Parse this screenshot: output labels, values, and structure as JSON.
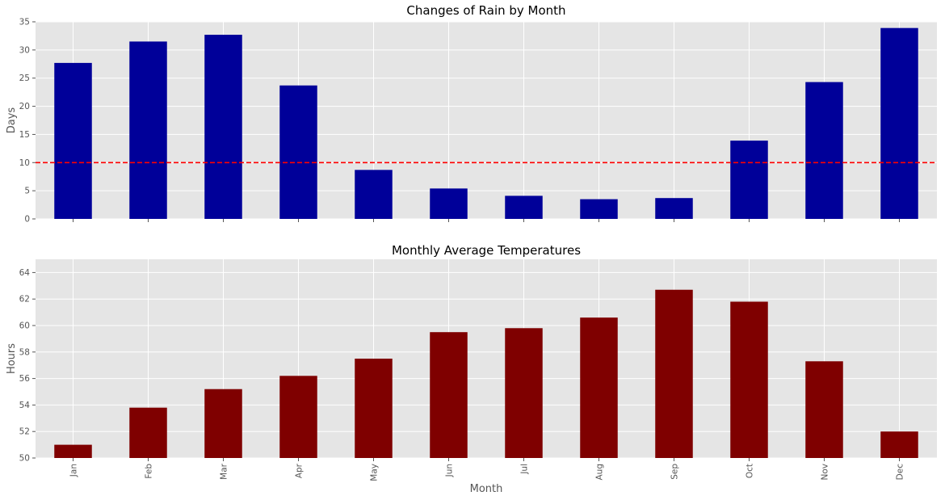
{
  "chart_data": [
    {
      "type": "bar",
      "title": "Changes of Rain by Month",
      "xlabel": "",
      "ylabel": "Days",
      "categories": [
        "Jan",
        "Feb",
        "Mar",
        "Apr",
        "May",
        "Jun",
        "Jul",
        "Aug",
        "Sep",
        "Oct",
        "Nov",
        "Dec"
      ],
      "values": [
        27.7,
        31.5,
        32.7,
        23.7,
        8.7,
        5.4,
        4.1,
        3.5,
        3.7,
        13.9,
        24.3,
        33.9
      ],
      "ylim": [
        0,
        35
      ],
      "yticks": [
        0,
        5,
        10,
        15,
        20,
        25,
        30,
        35
      ],
      "color": "#000099",
      "show_x_tick_labels": false,
      "reference_line": {
        "value": 10,
        "color": "#ff0000",
        "style": "dashed"
      },
      "grid": true
    },
    {
      "type": "bar",
      "title": "Monthly Average Temperatures",
      "xlabel": "Month",
      "ylabel": "Hours",
      "categories": [
        "Jan",
        "Feb",
        "Mar",
        "Apr",
        "May",
        "Jun",
        "Jul",
        "Aug",
        "Sep",
        "Oct",
        "Nov",
        "Dec"
      ],
      "values": [
        51.0,
        53.8,
        55.2,
        56.2,
        57.5,
        59.5,
        59.8,
        60.6,
        62.7,
        61.8,
        57.3,
        52.0
      ],
      "ylim": [
        50,
        65
      ],
      "yticks": [
        50,
        52,
        54,
        56,
        58,
        60,
        62,
        64
      ],
      "color": "#7f0000",
      "show_x_tick_labels": true,
      "grid": true
    }
  ],
  "style": {
    "axes_background": "#e5e5e5",
    "grid_color": "#ffffff",
    "text_color": "#555555"
  }
}
